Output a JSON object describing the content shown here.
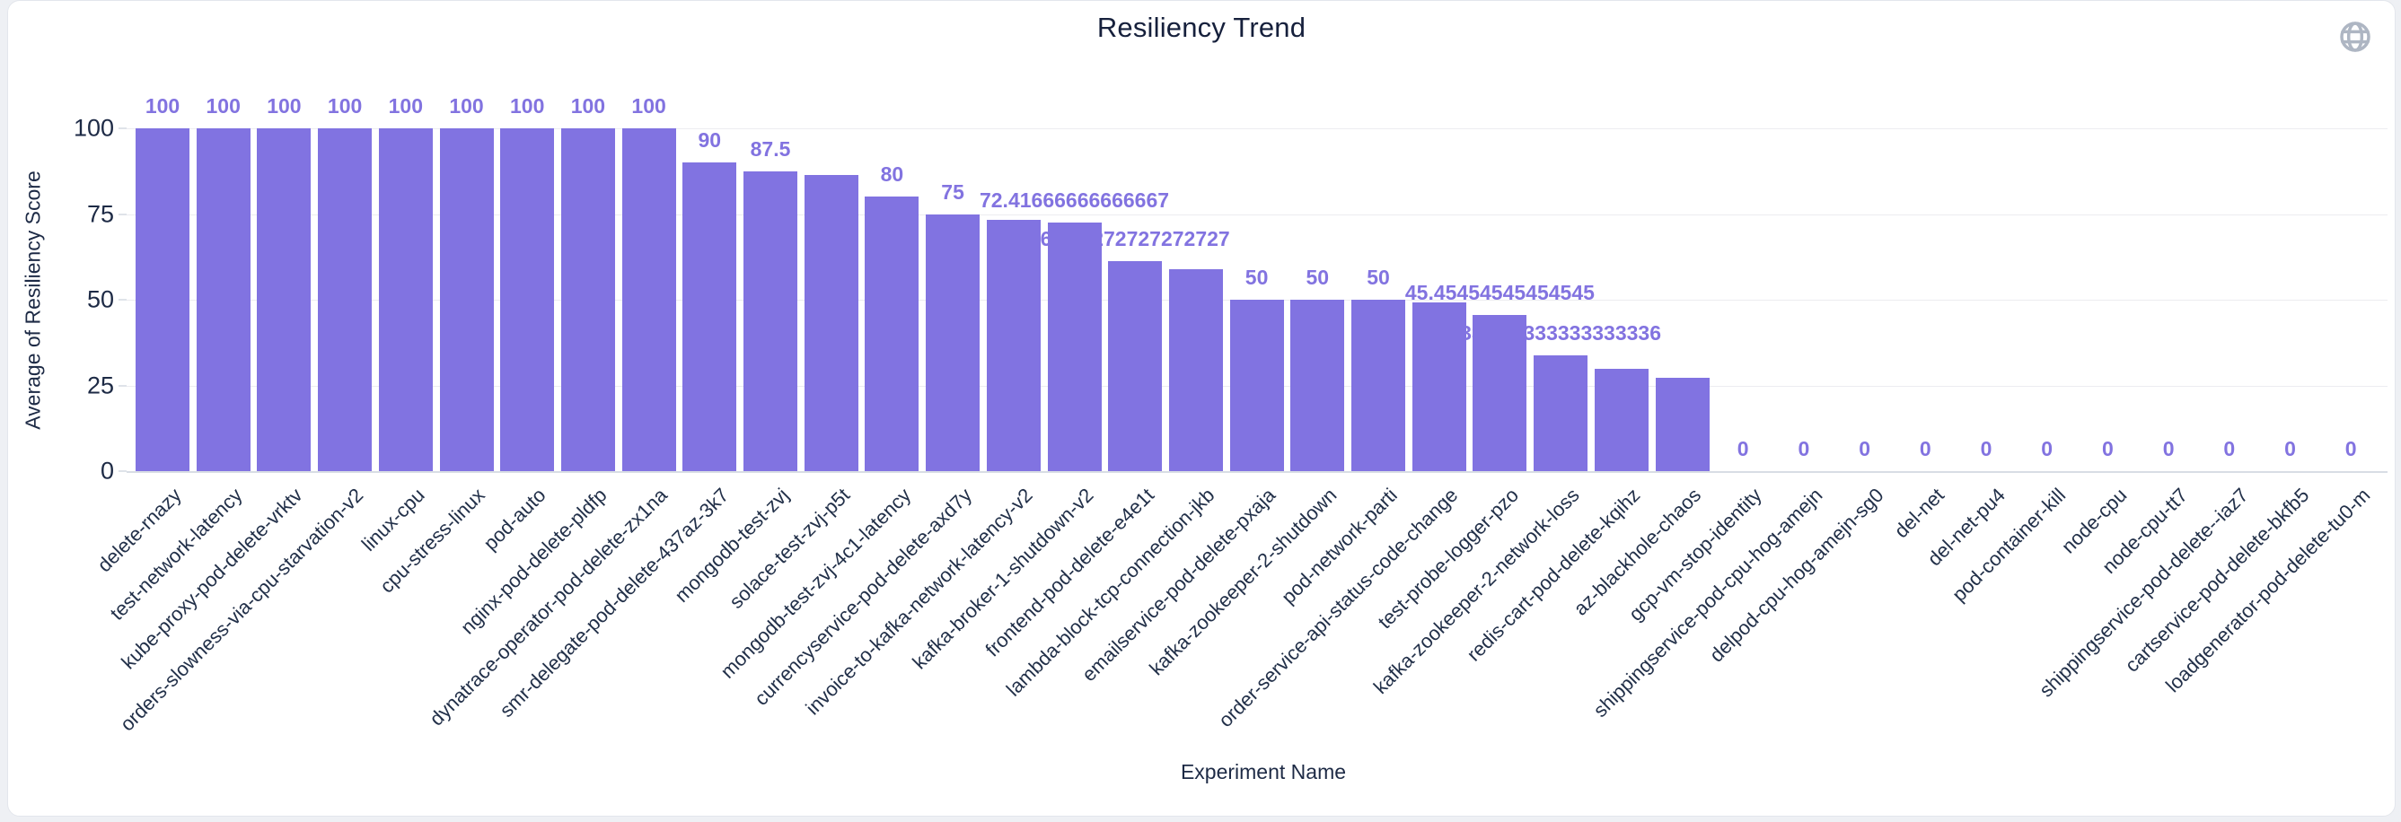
{
  "card": {
    "title": "Resiliency Trend"
  },
  "icons": {
    "top_right": "globe-icon"
  },
  "colors": {
    "bar": "#8173e1",
    "value_label": "#8273e0",
    "axis_text": "#1d2a45",
    "title_text": "#16203c",
    "gridline": "#ececf0",
    "globe_icon": "#aeb6c3",
    "card_bg": "#ffffff",
    "page_bg": "#eef0f4"
  },
  "chart_data": {
    "type": "bar",
    "title": "Resiliency Trend",
    "xlabel": "Experiment Name",
    "ylabel": "Average of Resiliency Score",
    "ylim": [
      0,
      100
    ],
    "yticks": [
      0,
      25,
      50,
      75,
      100
    ],
    "grid": "horizontal",
    "legend": "none",
    "categories": [
      "delete-rnazy",
      "test-network-latency",
      "kube-proxy-pod-delete-vrktv",
      "orders-slowness-via-cpu-starvation-v2",
      "linux-cpu",
      "cpu-stress-linux",
      "pod-auto",
      "nginx-pod-delete-pldfp",
      "dynatrace-operator-pod-delete-zx1na",
      "smr-delegate-pod-delete-437az-3k7",
      "mongodb-test-zvj",
      "solace-test-zvj-p5t",
      "mongodb-test-zvj-4c1-latency",
      "currencyservice-pod-delete-axd7y",
      "invoice-to-kafka-network-latency-v2",
      "kafka-broker-1-shutdown-v2",
      "frontend-pod-delete-e4e1t",
      "lambda-block-tcp-connection-jkb",
      "emailservice-pod-delete-pxaja",
      "kafka-zookeeper-2-shutdown",
      "pod-network-parti",
      "order-service-api-status-code-change",
      "test-probe-logger-pzo",
      "kafka-zookeeper-2-network-loss",
      "redis-cart-pod-delete-kqihz",
      "az-blackhole-chaos",
      "gcp-vm-stop-identity",
      "shippingservice-pod-cpu-hog-amejn",
      "delpod-cpu-hog-amejn-sg0",
      "del-net",
      "del-net-pu4",
      "pod-container-kill",
      "node-cpu",
      "node-cpu-tt7",
      "shippingservice-pod-delete--iaz7",
      "cartservice-pod-delete-bkfb5",
      "loadgenerator-pod-delete-tu0-m"
    ],
    "values": [
      100,
      100,
      100,
      100,
      100,
      100,
      100,
      100,
      100,
      90,
      87.5,
      86.5,
      80,
      75,
      73.3,
      72.41666666666667,
      61.27272727272727,
      58.8,
      50,
      50,
      50,
      49.2,
      45.45454545454545,
      33.833333333333336,
      29.8,
      27.2,
      0,
      0,
      0,
      0,
      0,
      0,
      0,
      0,
      0,
      0,
      0
    ],
    "bar_value_labels": [
      "100",
      "100",
      "100",
      "100",
      "100",
      "100",
      "100",
      "100",
      "100",
      "90",
      "87.5",
      "",
      "80",
      "75",
      "",
      "72.41666666666667",
      "61.27272727272727",
      "",
      "50",
      "50",
      "50",
      "",
      "45.45454545454545",
      "33.833333333333336",
      "",
      "",
      "0",
      "0",
      "0",
      "0",
      "0",
      "0",
      "0",
      "0",
      "0",
      "0",
      "0"
    ],
    "note_hidden_labels": "empty strings = value labels hidden by overlap in source chart"
  }
}
